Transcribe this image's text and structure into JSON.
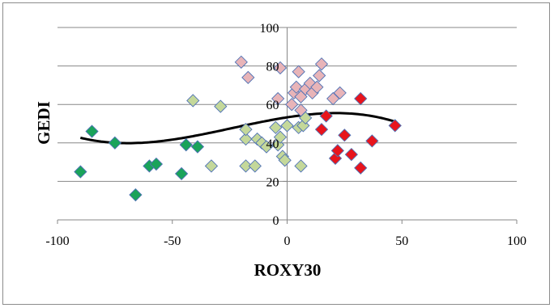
{
  "chart_data": {
    "type": "scatter",
    "xlabel": "ROXY30",
    "ylabel": "GEDI",
    "xlim": [
      -100,
      100
    ],
    "ylim": [
      0,
      100
    ],
    "x_ticks": [
      "-100",
      "-50",
      "0",
      "50",
      "100"
    ],
    "y_ticks": [
      "0",
      "20",
      "40",
      "60",
      "80",
      "100"
    ],
    "grid": "horizontal",
    "legend": "none",
    "colors": {
      "dark_green": "#1aa35a",
      "light_green": "#c4d89a",
      "pink": "#e8b4b8",
      "red": "#e8141c",
      "marker_edge": "#4f72b5",
      "trend_line": "#000000",
      "grid": "#878787",
      "axis": "#878787"
    },
    "series": [
      {
        "color_key": "dark_green",
        "points": [
          [
            -90,
            25
          ],
          [
            -85,
            46
          ],
          [
            -75,
            40
          ],
          [
            -66,
            13
          ],
          [
            -60,
            28
          ],
          [
            -57,
            29
          ],
          [
            -46,
            24
          ],
          [
            -44,
            39
          ],
          [
            -39,
            38
          ]
        ]
      },
      {
        "color_key": "light_green",
        "points": [
          [
            -41,
            62
          ],
          [
            -33,
            28
          ],
          [
            -29,
            59
          ],
          [
            -18,
            28
          ],
          [
            -18,
            42
          ],
          [
            -18,
            47
          ],
          [
            -14,
            28
          ],
          [
            -13,
            42
          ],
          [
            -11,
            40
          ],
          [
            -9,
            38
          ],
          [
            -5,
            48
          ],
          [
            -4,
            39
          ],
          [
            -3,
            43
          ],
          [
            -2,
            33
          ],
          [
            -1,
            31
          ],
          [
            0,
            49
          ],
          [
            5,
            48
          ],
          [
            6,
            28
          ],
          [
            7,
            49
          ],
          [
            8,
            53
          ]
        ]
      },
      {
        "color_key": "pink",
        "points": [
          [
            -20,
            82
          ],
          [
            -17,
            74
          ],
          [
            -4,
            63
          ],
          [
            -3,
            79
          ],
          [
            2,
            60
          ],
          [
            3,
            66
          ],
          [
            4,
            69
          ],
          [
            5,
            77
          ],
          [
            6,
            57
          ],
          [
            6,
            64
          ],
          [
            8,
            68
          ],
          [
            10,
            71
          ],
          [
            11,
            66
          ],
          [
            13,
            69
          ],
          [
            14,
            75
          ],
          [
            15,
            81
          ],
          [
            20,
            63
          ],
          [
            23,
            66
          ]
        ]
      },
      {
        "color_key": "red",
        "points": [
          [
            15,
            47
          ],
          [
            17,
            54
          ],
          [
            21,
            32
          ],
          [
            22,
            36
          ],
          [
            25,
            44
          ],
          [
            28,
            34
          ],
          [
            32,
            27
          ],
          [
            32,
            63
          ],
          [
            37,
            41
          ],
          [
            47,
            49
          ]
        ]
      }
    ],
    "trendline": {
      "type": "polynomial-3",
      "x_range": [
        -90,
        47
      ],
      "coefficients": [
        53.31,
        0.186,
        -0.003014,
        -4.187e-05
      ]
    }
  }
}
